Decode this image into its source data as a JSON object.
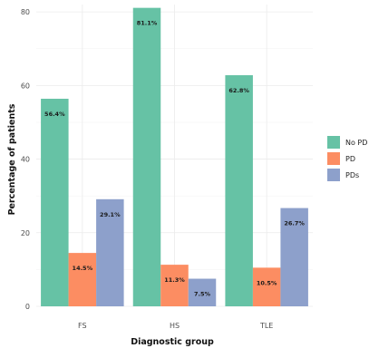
{
  "chart_data": {
    "type": "bar",
    "categories": [
      "FS",
      "HS",
      "TLE"
    ],
    "series": [
      {
        "name": "No PD",
        "color": "#66C2A5",
        "values": [
          56.4,
          81.1,
          62.8
        ],
        "labels": [
          "56.4%",
          "81.1%",
          "62.8%"
        ]
      },
      {
        "name": "PD",
        "color": "#FC8D62",
        "values": [
          14.5,
          11.3,
          10.5
        ],
        "labels": [
          "14.5%",
          "11.3%",
          "10.5%"
        ]
      },
      {
        "name": "PDs",
        "color": "#8DA0CB",
        "values": [
          29.1,
          7.5,
          26.7
        ],
        "labels": [
          "29.1%",
          "7.5%",
          "26.7%"
        ]
      }
    ],
    "xlabel": "Diagnostic group",
    "ylabel": "Percentage of patients",
    "ylim": [
      0,
      82
    ],
    "yticks": [
      0,
      20,
      40,
      60,
      80
    ],
    "grid": true,
    "legend_position": "right"
  }
}
